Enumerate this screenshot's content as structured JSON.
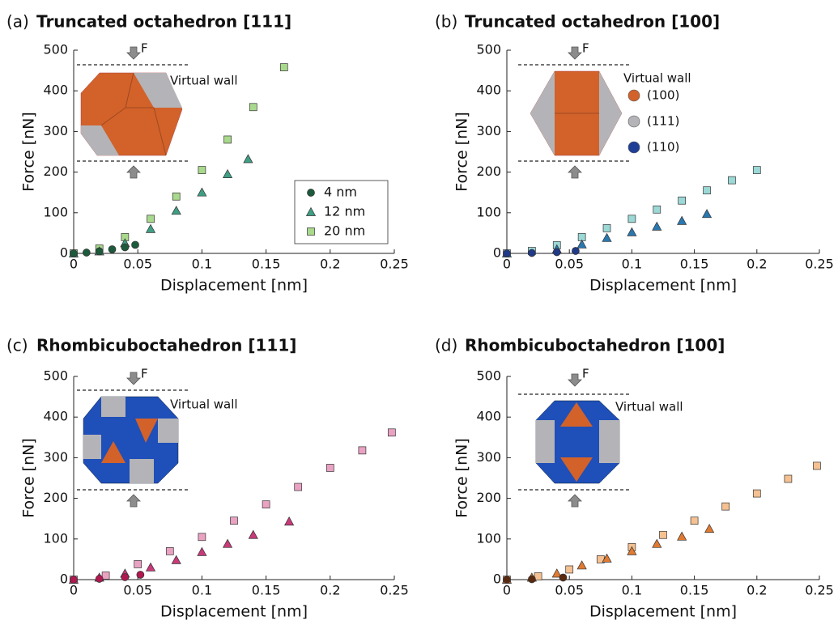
{
  "chart_data": [
    {
      "type": "scatter",
      "label": "(a)",
      "title": "Truncated octahedron [111]",
      "xlabel": "Displacement [nm]",
      "ylabel": "Force [nN]",
      "xlim": [
        0,
        0.25
      ],
      "xticks": [
        0,
        0.05,
        0.1,
        0.15,
        0.2,
        0.25
      ],
      "ylim": [
        0,
        500
      ],
      "yticks": [
        0,
        100,
        200,
        300,
        400,
        500
      ],
      "legend": "lower right",
      "annotations": [
        "F",
        "Virtual wall"
      ],
      "series": [
        {
          "name": "4 nm",
          "marker": "o",
          "color": "#1d5a3c",
          "x": [
            0,
            0.01,
            0.02,
            0.03,
            0.04,
            0.048
          ],
          "values": [
            0,
            2,
            5,
            10,
            15,
            21
          ]
        },
        {
          "name": "12 nm",
          "marker": "^",
          "color": "#3f9e84",
          "x": [
            0,
            0.02,
            0.04,
            0.06,
            0.08,
            0.1,
            0.12,
            0.136
          ],
          "values": [
            0,
            5,
            25,
            60,
            105,
            150,
            195,
            232
          ]
        },
        {
          "name": "20 nm",
          "marker": "s",
          "color": "#a9d98c",
          "x": [
            0,
            0.02,
            0.04,
            0.06,
            0.08,
            0.1,
            0.12,
            0.14,
            0.164
          ],
          "values": [
            0,
            12,
            40,
            85,
            140,
            205,
            280,
            360,
            458
          ]
        }
      ]
    },
    {
      "type": "scatter",
      "label": "(b)",
      "title": "Truncated octahedron [100]",
      "xlabel": "Displacement [nm]",
      "ylabel": "Force [nN]",
      "xlim": [
        0,
        0.25
      ],
      "xticks": [
        0,
        0.05,
        0.1,
        0.15,
        0.2,
        0.25
      ],
      "ylim": [
        0,
        500
      ],
      "yticks": [
        0,
        100,
        200,
        300,
        400,
        500
      ],
      "annotations": [
        "F",
        "Virtual wall"
      ],
      "facet_legend": [
        {
          "label": "(100)",
          "color": "#d2622a"
        },
        {
          "label": "(111)",
          "color": "#b4b4b8"
        },
        {
          "label": "(110)",
          "color": "#1f3f96"
        }
      ],
      "series": [
        {
          "marker": "o",
          "color": "#1f3a88",
          "x": [
            0,
            0.02,
            0.04,
            0.055
          ],
          "values": [
            0,
            1,
            3,
            6
          ]
        },
        {
          "marker": "^",
          "color": "#2a78b0",
          "x": [
            0,
            0.04,
            0.06,
            0.08,
            0.1,
            0.12,
            0.14,
            0.16
          ],
          "values": [
            0,
            10,
            22,
            38,
            52,
            66,
            80,
            97
          ]
        },
        {
          "marker": "s",
          "color": "#9bd8d6",
          "x": [
            0,
            0.02,
            0.04,
            0.06,
            0.08,
            0.1,
            0.12,
            0.14,
            0.16,
            0.18,
            0.2
          ],
          "values": [
            0,
            6,
            20,
            40,
            62,
            85,
            108,
            130,
            155,
            180,
            205
          ]
        }
      ]
    },
    {
      "type": "scatter",
      "label": "(c)",
      "title": "Rhombicuboctahedron [111]",
      "xlabel": "Displacement [nm]",
      "ylabel": "Force [nN]",
      "xlim": [
        0,
        0.25
      ],
      "xticks": [
        0,
        0.05,
        0.1,
        0.15,
        0.2,
        0.25
      ],
      "ylim": [
        0,
        500
      ],
      "yticks": [
        0,
        100,
        200,
        300,
        400,
        500
      ],
      "annotations": [
        "F",
        "Virtual wall"
      ],
      "series": [
        {
          "marker": "o",
          "color": "#b01850",
          "x": [
            0,
            0.02,
            0.04,
            0.052
          ],
          "values": [
            0,
            2,
            6,
            12
          ]
        },
        {
          "marker": "^",
          "color": "#c83a7a",
          "x": [
            0,
            0.02,
            0.04,
            0.06,
            0.08,
            0.1,
            0.12,
            0.14,
            0.168
          ],
          "values": [
            0,
            5,
            15,
            30,
            48,
            68,
            88,
            110,
            143
          ]
        },
        {
          "marker": "s",
          "color": "#e9a2c2",
          "x": [
            0,
            0.025,
            0.05,
            0.075,
            0.1,
            0.125,
            0.15,
            0.175,
            0.2,
            0.225,
            0.248
          ],
          "values": [
            0,
            10,
            38,
            70,
            105,
            145,
            185,
            228,
            275,
            318,
            362
          ]
        }
      ]
    },
    {
      "type": "scatter",
      "label": "(d)",
      "title": "Rhombicuboctahedron [100]",
      "xlabel": "Displacement [nm]",
      "ylabel": "Force [nN]",
      "xlim": [
        0,
        0.25
      ],
      "xticks": [
        0,
        0.05,
        0.1,
        0.15,
        0.2,
        0.25
      ],
      "ylim": [
        0,
        500
      ],
      "yticks": [
        0,
        100,
        200,
        300,
        400,
        500
      ],
      "annotations": [
        "F",
        "Virtual wall"
      ],
      "series": [
        {
          "marker": "o",
          "color": "#5a2a10",
          "x": [
            0,
            0.02,
            0.045
          ],
          "values": [
            0,
            1,
            5
          ]
        },
        {
          "marker": "^",
          "color": "#e07a30",
          "x": [
            0,
            0.02,
            0.04,
            0.06,
            0.08,
            0.1,
            0.12,
            0.14,
            0.162
          ],
          "values": [
            0,
            5,
            15,
            35,
            52,
            70,
            88,
            106,
            125
          ]
        },
        {
          "marker": "s",
          "color": "#f5c192",
          "x": [
            0,
            0.025,
            0.05,
            0.075,
            0.1,
            0.125,
            0.15,
            0.175,
            0.2,
            0.225,
            0.248
          ],
          "values": [
            0,
            8,
            25,
            50,
            80,
            110,
            145,
            180,
            212,
            248,
            280
          ]
        }
      ]
    }
  ]
}
